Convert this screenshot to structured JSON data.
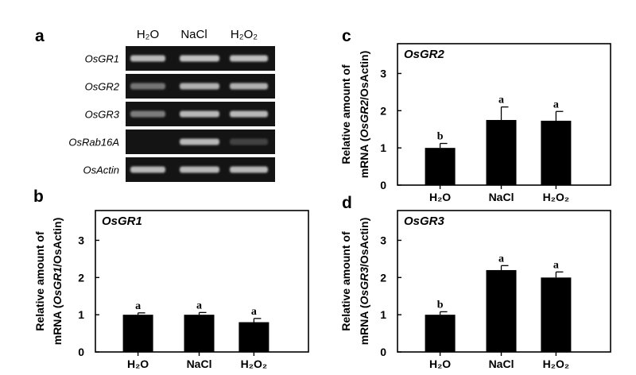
{
  "gel": {
    "panel_label": "a",
    "columns": [
      "H₂O",
      "NaCl",
      "H₂O₂"
    ],
    "rows": [
      {
        "gene": "OsGR1",
        "bands": [
          0.85,
          0.9,
          0.88
        ]
      },
      {
        "gene": "OsGR2",
        "bands": [
          0.45,
          0.8,
          0.8
        ]
      },
      {
        "gene": "OsGR3",
        "bands": [
          0.5,
          0.85,
          0.85
        ]
      },
      {
        "gene": "OsRab16A",
        "bands": [
          0.0,
          0.85,
          0.15
        ]
      },
      {
        "gene": "OsActin",
        "bands": [
          0.85,
          0.85,
          0.85
        ]
      }
    ]
  },
  "axis_text": {
    "ylabel_line1": "Relative amount of",
    "ylabel_line2_prefix": "mRNA (",
    "ylabel_line2_suffix": "/OsActin)",
    "x_tick_labels": [
      "H₂O",
      "NaCl",
      "H₂O₂"
    ]
  },
  "chart_data": [
    {
      "panel_label": "b",
      "type": "bar",
      "title": "OsGR1",
      "gene": "OsGR1",
      "categories": [
        "H₂O",
        "NaCl",
        "H₂O₂"
      ],
      "values": [
        1.0,
        1.0,
        0.8
      ],
      "errors": [
        0.05,
        0.06,
        0.1
      ],
      "significance": [
        "a",
        "a",
        "a"
      ],
      "ylim": [
        0,
        3.8
      ],
      "yticks": [
        "0",
        "1",
        "2",
        "3"
      ]
    },
    {
      "panel_label": "c",
      "type": "bar",
      "title": "OsGR2",
      "gene": "OsGR2",
      "categories": [
        "H₂O",
        "NaCl",
        "H₂O₂"
      ],
      "values": [
        1.0,
        1.75,
        1.73
      ],
      "errors": [
        0.12,
        0.35,
        0.25
      ],
      "significance": [
        "b",
        "a",
        "a"
      ],
      "ylim": [
        0,
        3.8
      ],
      "yticks": [
        "0",
        "1",
        "2",
        "3"
      ]
    },
    {
      "panel_label": "d",
      "type": "bar",
      "title": "OsGR3",
      "gene": "OsGR3",
      "categories": [
        "H₂O",
        "NaCl",
        "H₂O₂"
      ],
      "values": [
        1.0,
        2.2,
        2.0
      ],
      "errors": [
        0.08,
        0.12,
        0.15
      ],
      "significance": [
        "b",
        "a",
        "a"
      ],
      "ylim": [
        0,
        3.8
      ],
      "yticks": [
        "0",
        "1",
        "2",
        "3"
      ]
    }
  ]
}
